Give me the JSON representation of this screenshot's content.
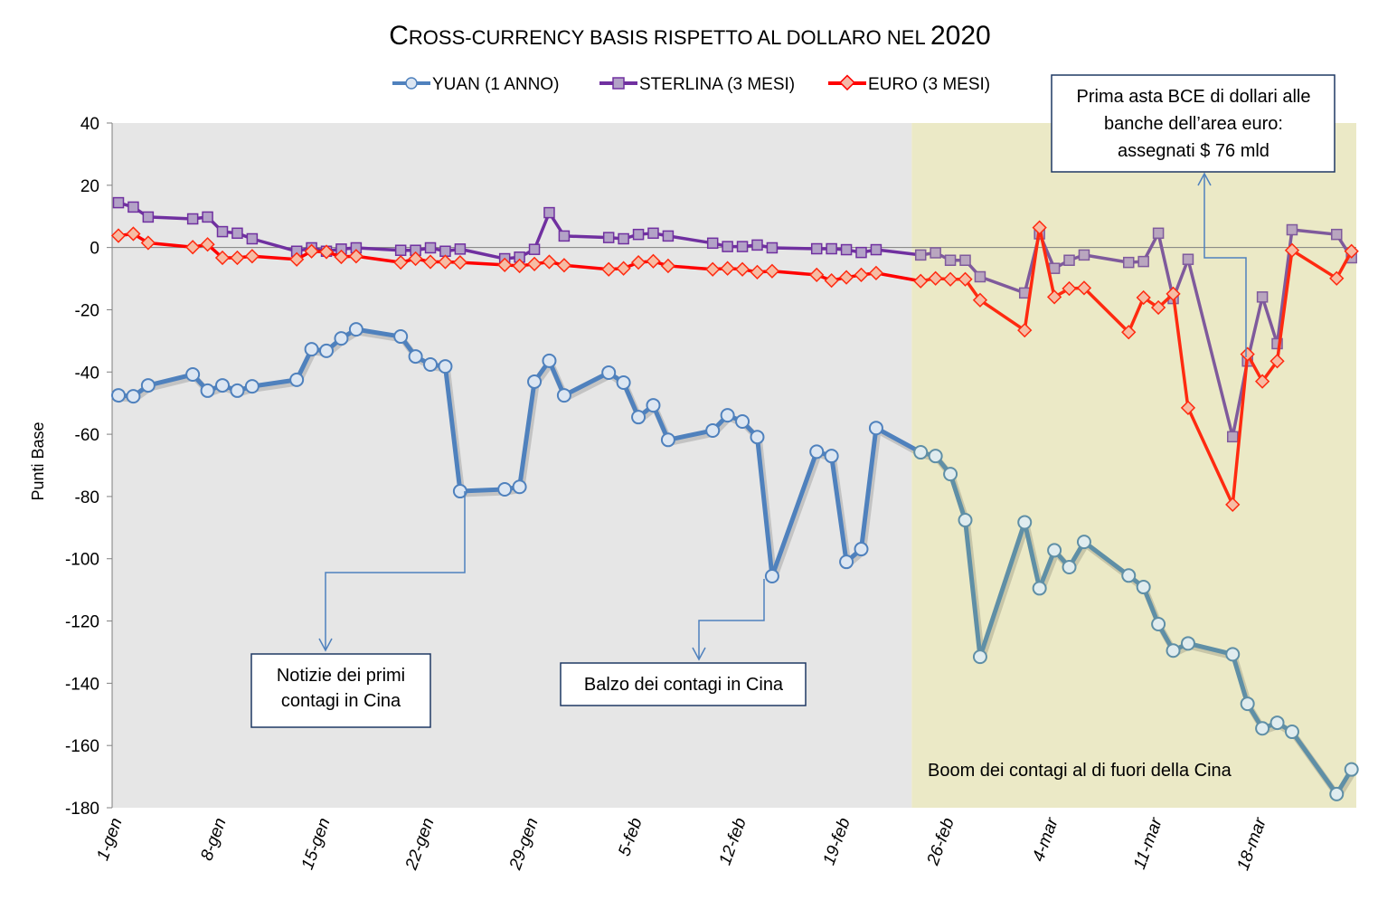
{
  "chart_data": {
    "type": "line",
    "title": "Cross-currency basis rispetto al dollaro nel 2020",
    "title_display": {
      "big_c": "C",
      "rest": "ROSS-CURRENCY BASIS RISPETTO AL DOLLARO NEL ",
      "year": "2020"
    },
    "ylabel": "Punti Base",
    "xlabel": "",
    "ylim": [
      -180,
      40
    ],
    "yticks": [
      40,
      20,
      0,
      -20,
      -40,
      -60,
      -80,
      -100,
      -120,
      -140,
      -160,
      -180
    ],
    "xlim_days": [
      0,
      85
    ],
    "xticks": [
      {
        "day": 0,
        "label": "1-gen"
      },
      {
        "day": 7,
        "label": "8-gen"
      },
      {
        "day": 14,
        "label": "15-gen"
      },
      {
        "day": 21,
        "label": "22-gen"
      },
      {
        "day": 28,
        "label": "29-gen"
      },
      {
        "day": 35,
        "label": "5-feb"
      },
      {
        "day": 42,
        "label": "12-feb"
      },
      {
        "day": 49,
        "label": "19-feb"
      },
      {
        "day": 56,
        "label": "26-feb"
      },
      {
        "day": 63,
        "label": "4-mar"
      },
      {
        "day": 70,
        "label": "11-mar"
      },
      {
        "day": 77,
        "label": "18-mar"
      }
    ],
    "legend_position": "top-center",
    "x_days": [
      0,
      1,
      2,
      5,
      6,
      7,
      8,
      9,
      12,
      13,
      14,
      15,
      16,
      19,
      20,
      21,
      22,
      23,
      26,
      27,
      28,
      29,
      30,
      33,
      34,
      35,
      36,
      37,
      40,
      41,
      42,
      43,
      44,
      47,
      48,
      49,
      50,
      51,
      54,
      55,
      56,
      57,
      58,
      61,
      62,
      63,
      64,
      65,
      68,
      69,
      70,
      71,
      72,
      75,
      76,
      77,
      78,
      79,
      82,
      83
    ],
    "series": [
      {
        "name": "YUAN (1 ANNO)",
        "color": "#4f81bd",
        "color_shaded": "#5f8fa6",
        "marker": "circle",
        "values": [
          -47.5,
          -47.8,
          -44.3,
          -40.8,
          -46,
          -44.3,
          -46,
          -44.6,
          -42.5,
          -32.7,
          -33.2,
          -29.2,
          -26.3,
          -28.6,
          -35,
          -37.6,
          -38.2,
          -78.3,
          -77.7,
          -76.9,
          -43.1,
          -36.4,
          -47.5,
          -40.2,
          -43.4,
          -54.5,
          -50.7,
          -61.8,
          -58.8,
          -53.9,
          -55.9,
          -60.9,
          -105.6,
          -65.6,
          -67,
          -101,
          -96.9,
          -58,
          -65.8,
          -67,
          -72.8,
          -87.6,
          -131.5,
          -88.3,
          -109.5,
          -97.3,
          -102.7,
          -94.6,
          -105.4,
          -109.1,
          -121,
          -129.5,
          -127.2,
          -130.7,
          -146.6,
          -154.5,
          -152.7,
          -155.6,
          -175.6,
          -167.7
        ]
      },
      {
        "name": "STERLINA (3 MESI)",
        "color": "#7030a0",
        "color_shaded": "#7f5a9c",
        "marker": "square",
        "values": [
          14.4,
          13,
          9.8,
          9.2,
          9.8,
          5.1,
          4.6,
          2.8,
          -1.2,
          -0.1,
          -1.2,
          -0.5,
          -0.1,
          -0.9,
          -0.9,
          -0.1,
          -1.2,
          -0.5,
          -3.6,
          -3.1,
          -0.6,
          11.2,
          3.7,
          3.2,
          2.8,
          4.2,
          4.6,
          3.7,
          1.4,
          0.3,
          0.3,
          0.8,
          -0.1,
          -0.4,
          -0.4,
          -0.7,
          -1.6,
          -0.7,
          -2.4,
          -1.7,
          -4.1,
          -4.1,
          -9.4,
          -14.6,
          4.4,
          -6.7,
          -4.1,
          -2.4,
          -4.8,
          -4.5,
          4.6,
          -16.4,
          -3.8,
          -60.8,
          -36.5,
          -15.9,
          -30.9,
          5.7,
          4.2,
          -3.3
        ]
      },
      {
        "name": "EURO (3 MESI)",
        "color": "#ff0000",
        "color_shaded": "#ff2a10",
        "marker": "diamond",
        "values": [
          3.8,
          4.4,
          1.5,
          0.1,
          1,
          -3.3,
          -3.3,
          -2.8,
          -3.8,
          -1.2,
          -1.4,
          -3,
          -2.8,
          -4.8,
          -3.6,
          -4.6,
          -4.6,
          -4.8,
          -5.6,
          -5.9,
          -5.3,
          -4.6,
          -5.7,
          -7,
          -6.7,
          -4.8,
          -4.4,
          -5.9,
          -7,
          -6.7,
          -7,
          -7.9,
          -7.6,
          -8.8,
          -10.6,
          -9.6,
          -8.8,
          -8.2,
          -10.8,
          -9.9,
          -10.2,
          -10.2,
          -16.9,
          -26.6,
          6.4,
          -15.9,
          -13.2,
          -13,
          -27.2,
          -16.1,
          -19.3,
          -14.9,
          -51.5,
          -82.6,
          -34.3,
          -43,
          -36.5,
          -0.9,
          -9.9,
          -1.2
        ]
      }
    ],
    "shaded_regions": [
      {
        "from_day": 0,
        "to_day": 53.4,
        "color": "#e6e6e6"
      },
      {
        "from_day": 53.4,
        "to_day": 83.7,
        "color": "#ebe9c6",
        "label": "Boom dei contagi al di fuori della Cina"
      }
    ],
    "annotations": [
      {
        "lines": [
          "Notizie dei primi",
          "contagi in Cina"
        ],
        "points_to_day": 23
      },
      {
        "lines": [
          "Balzo dei contagi in Cina"
        ],
        "points_to_day": 44
      },
      {
        "lines": [
          "Prima asta BCE di dollari alle",
          "banche dell’area euro:",
          "assegnati $ 76 mld"
        ],
        "points_to_day": 76
      }
    ]
  }
}
